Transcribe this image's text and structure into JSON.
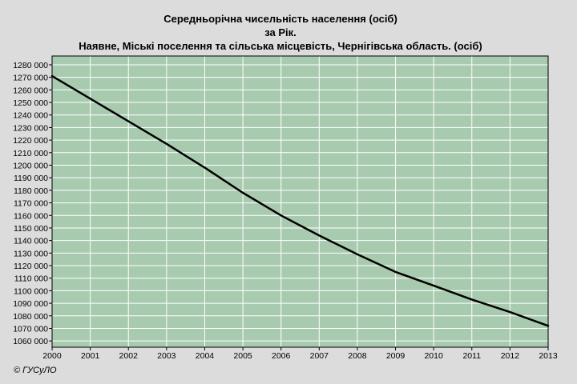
{
  "titles": {
    "line1": "Середньорічна чисельність населення (осіб)",
    "line2": "за Рік.",
    "line3": "Наявне, Міські поселення та сільська місцевість, Чернігівська область. (осіб)"
  },
  "copyright": "© ГУСуЛО",
  "colors": {
    "background": "#dcdcdc",
    "plot_area": "#a8cbb0",
    "grid": "#ffffff",
    "line": "#000000"
  },
  "chart_data": {
    "type": "line",
    "title": "Середньорічна чисельність населення (осіб)",
    "subtitle": "за Рік.",
    "xlabel": "",
    "ylabel": "",
    "x": [
      2000,
      2001,
      2002,
      2003,
      2004,
      2005,
      2006,
      2007,
      2008,
      2009,
      2010,
      2011,
      2012,
      2013
    ],
    "series": [
      {
        "values": [
          1271000,
          1253000,
          1235000,
          1217000,
          1198000,
          1178000,
          1160000,
          1144000,
          1129000,
          1115000,
          1104000,
          1093000,
          1083000,
          1072000
        ]
      }
    ],
    "x_ticks": [
      "2000",
      "2001",
      "2002",
      "2003",
      "2004",
      "2005",
      "2006",
      "2007",
      "2008",
      "2009",
      "2010",
      "2011",
      "2012",
      "2013"
    ],
    "y_ticks": [
      1060000,
      1070000,
      1080000,
      1090000,
      1100000,
      1110000,
      1120000,
      1130000,
      1140000,
      1150000,
      1160000,
      1170000,
      1180000,
      1190000,
      1200000,
      1210000,
      1220000,
      1230000,
      1240000,
      1250000,
      1260000,
      1270000,
      1280000
    ],
    "y_tick_labels": [
      "1060 000",
      "1070 000",
      "1080 000",
      "1090 000",
      "1100 000",
      "1110 000",
      "1120 000",
      "1130 000",
      "1140 000",
      "1150 000",
      "1160 000",
      "1170 000",
      "1180 000",
      "1190 000",
      "1200 000",
      "1210 000",
      "1220 000",
      "1230 000",
      "1240 000",
      "1250 000",
      "1260 000",
      "1270 000",
      "1280 000"
    ],
    "xlim": [
      2000,
      2013
    ],
    "ylim": [
      1055000,
      1287000
    ],
    "grid": true,
    "legend": "none"
  }
}
